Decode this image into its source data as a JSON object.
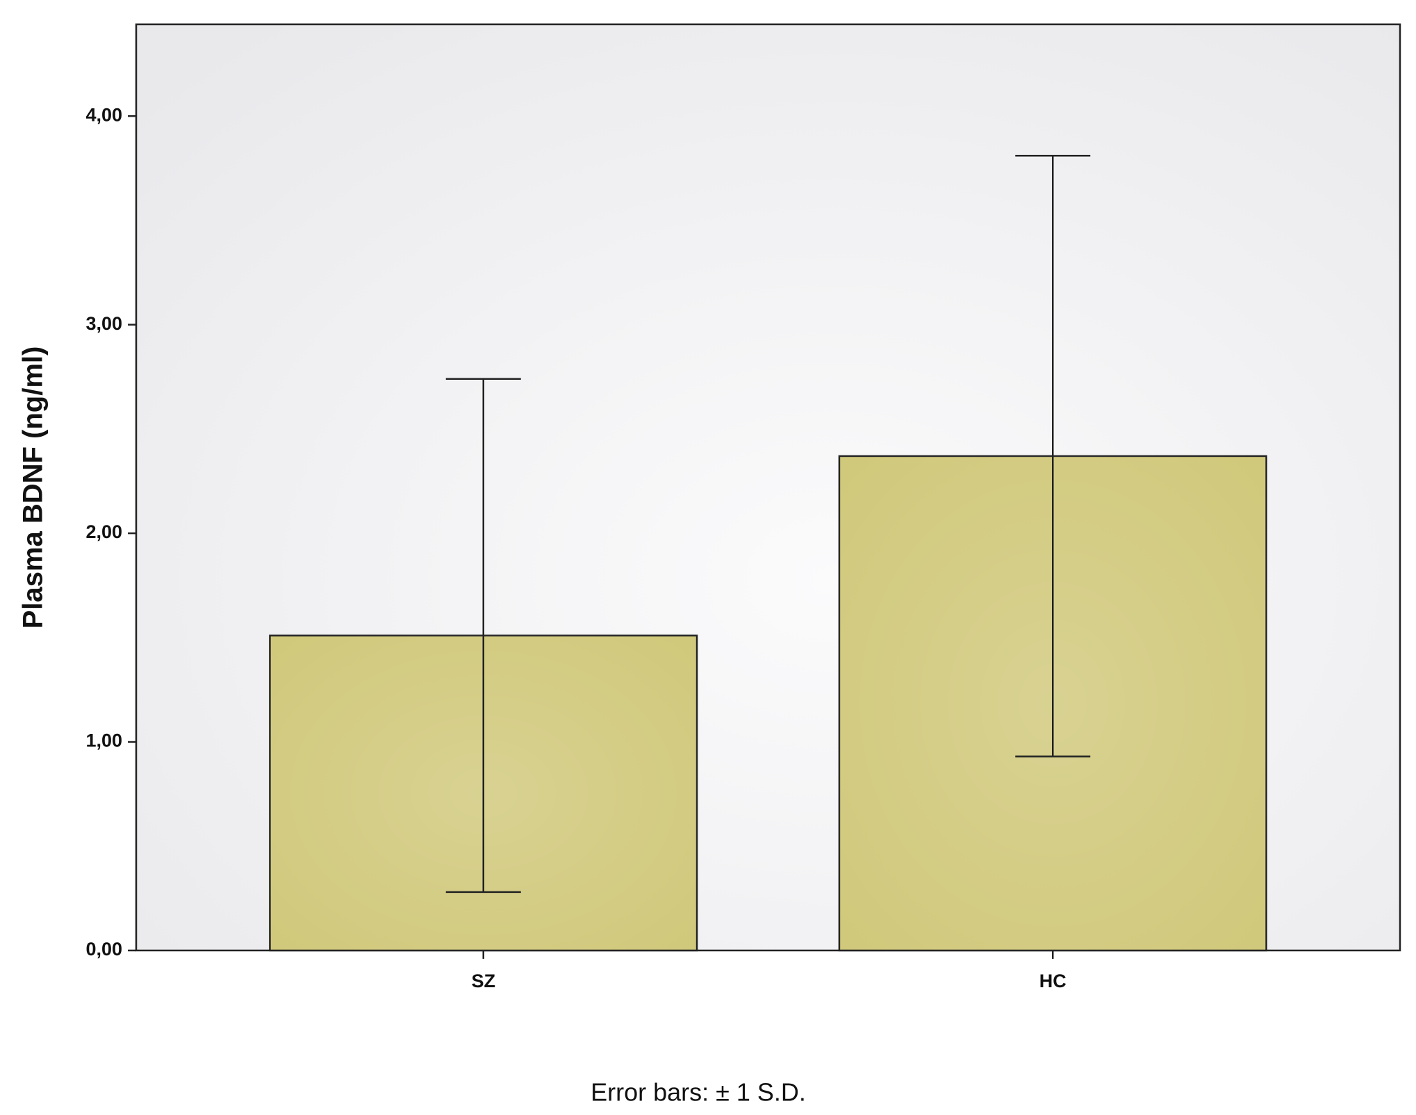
{
  "chart_data": {
    "type": "bar",
    "y_label": "Plasma BDNF (ng/ml)",
    "categories": [
      "SZ",
      "HC"
    ],
    "values": [
      1.51,
      2.37
    ],
    "errors": [
      1.23,
      1.44
    ],
    "color": "#d0c87a",
    "ylim": [
      0,
      4.44
    ],
    "yticks": [
      {
        "value": 0,
        "label": "0,00"
      },
      {
        "value": 1,
        "label": "1,00"
      },
      {
        "value": 2,
        "label": "2,00"
      },
      {
        "value": 3,
        "label": "3,00"
      },
      {
        "value": 4,
        "label": "4,00"
      }
    ],
    "grid": false,
    "footnote": "Error bars:  ± 1 S.D."
  }
}
